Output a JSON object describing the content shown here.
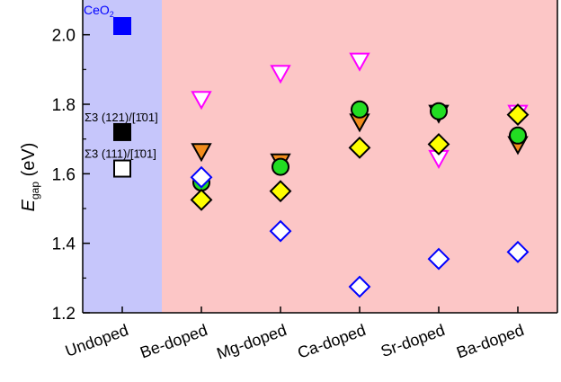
{
  "chart_data": {
    "type": "scatter",
    "title": "",
    "ylabel": {
      "main": "E",
      "sub": "gap",
      "unit": " (eV)"
    },
    "ylim": [
      1.2,
      2.1
    ],
    "yticks": [
      1.2,
      1.4,
      1.6,
      1.8,
      2.0
    ],
    "ytick_labels": [
      "1.2",
      "1.4",
      "1.6",
      "1.8",
      "2.0"
    ],
    "categories": [
      "Undoped",
      "Be-doped",
      "Mg-doped",
      "Ca-doped",
      "Sr-doped",
      "Ba-doped"
    ],
    "regions": [
      {
        "categories": [
          "Undoped"
        ],
        "color": "#c6c6fb"
      },
      {
        "categories": [
          "Be-doped",
          "Mg-doped",
          "Ca-doped",
          "Sr-doped",
          "Ba-doped"
        ],
        "color": "#fcc6c6"
      }
    ],
    "undoped_points": [
      {
        "label": "CeO",
        "label_sub": "2",
        "value": 2.025,
        "marker": "square",
        "fill": "#0000ff",
        "stroke": "#0000ff",
        "label_color": "#0000ff"
      },
      {
        "label": "Σ3 (121)/[1̄01]",
        "value": 1.72,
        "marker": "square",
        "fill": "#000000",
        "stroke": "#000000",
        "label_color": "#000000"
      },
      {
        "label": "Σ3 (111)/[1̄01]",
        "value": 1.615,
        "marker": "square",
        "fill": "#ffffff",
        "stroke": "#000000",
        "label_color": "#000000"
      }
    ],
    "series": [
      {
        "marker": "triangle-down",
        "fill": "#ffffff",
        "stroke": "#ff00ff",
        "values": [
          null,
          1.815,
          1.89,
          1.925,
          1.645,
          1.775
        ]
      },
      {
        "marker": "triangle-down",
        "fill": "#f28c1c",
        "stroke": "#000000",
        "values": [
          null,
          1.665,
          1.635,
          1.75,
          1.775,
          1.685
        ]
      },
      {
        "marker": "circle",
        "fill": "#22dd22",
        "stroke": "#000000",
        "values": [
          null,
          1.575,
          1.62,
          1.785,
          1.78,
          1.71
        ]
      },
      {
        "marker": "diamond",
        "fill": "#ffff00",
        "stroke": "#000000",
        "values": [
          null,
          1.525,
          1.55,
          1.675,
          1.685,
          1.77
        ]
      },
      {
        "marker": "diamond",
        "fill": "#ffffff",
        "stroke": "#0000ff",
        "values": [
          null,
          1.59,
          1.435,
          1.275,
          1.355,
          1.375
        ]
      }
    ]
  }
}
